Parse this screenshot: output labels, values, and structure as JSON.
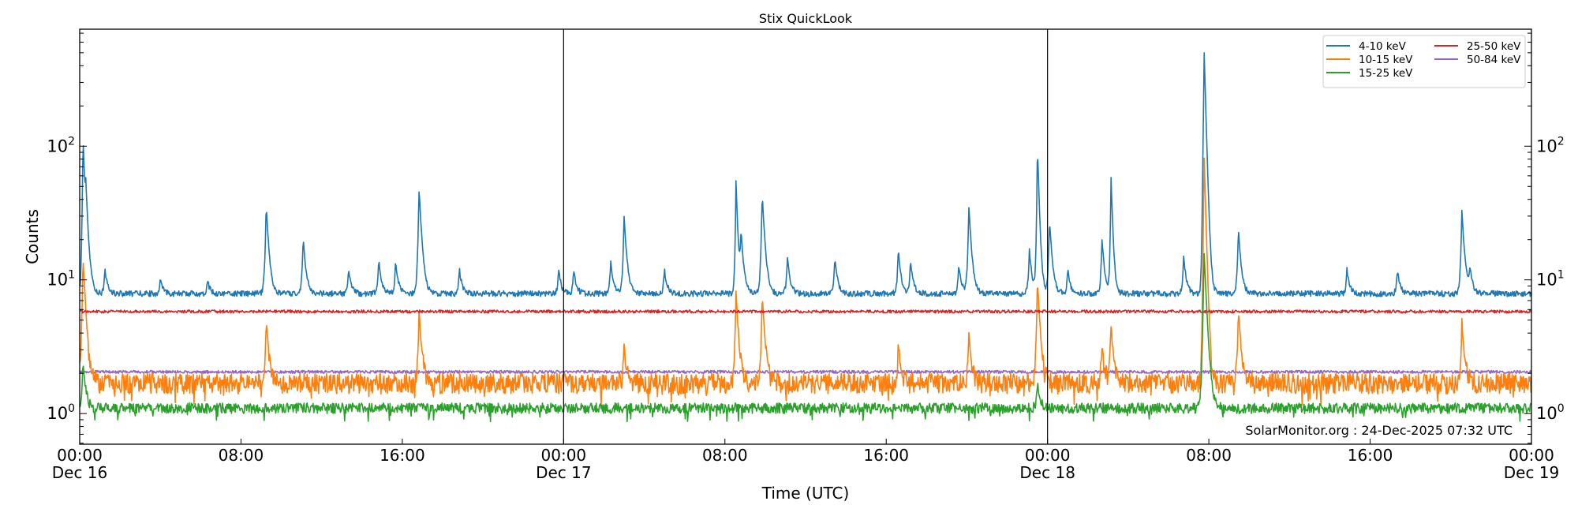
{
  "chart_data": {
    "type": "line",
    "title": "Stix QuickLook",
    "xlabel": "Time (UTC)",
    "ylabel": "Counts",
    "yscale": "log",
    "ylim": [
      0.59,
      750
    ],
    "xlim": [
      "2025-12-16T00:00",
      "2025-12-19T00:00"
    ],
    "x_ticks": [
      {
        "time": "2025-12-16T00:00",
        "label": "00:00",
        "sublabel": "Dec 16"
      },
      {
        "time": "2025-12-16T08:00",
        "label": "08:00",
        "sublabel": ""
      },
      {
        "time": "2025-12-16T16:00",
        "label": "16:00",
        "sublabel": ""
      },
      {
        "time": "2025-12-17T00:00",
        "label": "00:00",
        "sublabel": "Dec 17"
      },
      {
        "time": "2025-12-17T08:00",
        "label": "08:00",
        "sublabel": ""
      },
      {
        "time": "2025-12-17T16:00",
        "label": "16:00",
        "sublabel": ""
      },
      {
        "time": "2025-12-18T00:00",
        "label": "00:00",
        "sublabel": "Dec 18"
      },
      {
        "time": "2025-12-18T08:00",
        "label": "08:00",
        "sublabel": ""
      },
      {
        "time": "2025-12-18T16:00",
        "label": "16:00",
        "sublabel": ""
      },
      {
        "time": "2025-12-19T00:00",
        "label": "00:00",
        "sublabel": "Dec 19"
      }
    ],
    "y_ticks": [
      {
        "value": 1,
        "base": "10",
        "exp": "0"
      },
      {
        "value": 10,
        "base": "10",
        "exp": "1"
      },
      {
        "value": 100,
        "base": "10",
        "exp": "2"
      }
    ],
    "day_boundaries": [
      "2025-12-17T00:00",
      "2025-12-18T00:00"
    ],
    "grid": false,
    "legend_position": "top-right",
    "legend_columns": 2,
    "annotation": "SolarMonitor.org : 24-Dec-2025 07:32 UTC",
    "series": [
      {
        "name": "4-10 keV",
        "color": "#1f77b4",
        "baseline": 7.9,
        "peaks": [
          [
            "2025-12-16T00:10",
            115
          ],
          [
            "2025-12-16T00:18",
            38
          ],
          [
            "2025-12-16T01:15",
            12
          ],
          [
            "2025-12-16T04:00",
            10
          ],
          [
            "2025-12-16T06:20",
            10
          ],
          [
            "2025-12-16T09:15",
            36
          ],
          [
            "2025-12-16T11:05",
            21
          ],
          [
            "2025-12-16T13:20",
            12
          ],
          [
            "2025-12-16T14:50",
            14
          ],
          [
            "2025-12-16T15:40",
            14
          ],
          [
            "2025-12-16T16:50",
            48
          ],
          [
            "2025-12-16T18:50",
            12
          ],
          [
            "2025-12-16T23:45",
            12
          ],
          [
            "2025-12-17T00:30",
            12
          ],
          [
            "2025-12-17T02:20",
            14
          ],
          [
            "2025-12-17T03:00",
            30
          ],
          [
            "2025-12-17T05:00",
            12
          ],
          [
            "2025-12-17T08:33",
            55
          ],
          [
            "2025-12-17T08:48",
            22
          ],
          [
            "2025-12-17T09:51",
            44
          ],
          [
            "2025-12-17T11:06",
            15
          ],
          [
            "2025-12-17T13:27",
            15
          ],
          [
            "2025-12-17T16:36",
            17
          ],
          [
            "2025-12-17T17:12",
            14
          ],
          [
            "2025-12-17T19:36",
            13
          ],
          [
            "2025-12-17T20:06",
            35
          ],
          [
            "2025-12-17T23:06",
            17
          ],
          [
            "2025-12-17T23:30",
            100
          ],
          [
            "2025-12-18T00:06",
            28
          ],
          [
            "2025-12-18T01:00",
            12
          ],
          [
            "2025-12-18T02:42",
            20
          ],
          [
            "2025-12-18T03:09",
            58
          ],
          [
            "2025-12-18T06:45",
            15
          ],
          [
            "2025-12-18T07:46",
            520
          ],
          [
            "2025-12-18T09:28",
            24
          ],
          [
            "2025-12-18T14:51",
            12
          ],
          [
            "2025-12-18T17:21",
            12
          ],
          [
            "2025-12-18T20:33",
            33
          ],
          [
            "2025-12-18T20:57",
            12
          ]
        ]
      },
      {
        "name": "10-15 keV",
        "color": "#ff7f0e",
        "baseline": 1.7,
        "peaks": [
          [
            "2025-12-16T00:10",
            15
          ],
          [
            "2025-12-16T09:15",
            5
          ],
          [
            "2025-12-16T16:50",
            6
          ],
          [
            "2025-12-17T03:00",
            3.3
          ],
          [
            "2025-12-17T08:33",
            8
          ],
          [
            "2025-12-17T09:51",
            8
          ],
          [
            "2025-12-17T16:36",
            3.3
          ],
          [
            "2025-12-17T20:06",
            4
          ],
          [
            "2025-12-17T23:30",
            10
          ],
          [
            "2025-12-18T02:42",
            3.3
          ],
          [
            "2025-12-18T03:09",
            4.7
          ],
          [
            "2025-12-18T07:46",
            85
          ],
          [
            "2025-12-18T09:28",
            6
          ],
          [
            "2025-12-18T20:33",
            5
          ]
        ]
      },
      {
        "name": "15-25 keV",
        "color": "#2ca02c",
        "baseline": 1.1,
        "peaks": [
          [
            "2025-12-16T00:10",
            2.5
          ],
          [
            "2025-12-17T23:30",
            1.7
          ],
          [
            "2025-12-18T07:46",
            16
          ]
        ]
      },
      {
        "name": "25-50 keV",
        "color": "#d62728",
        "baseline": 5.8,
        "peaks": []
      },
      {
        "name": "50-84 keV",
        "color": "#9467bd",
        "baseline": 2.05,
        "peaks": []
      }
    ]
  }
}
